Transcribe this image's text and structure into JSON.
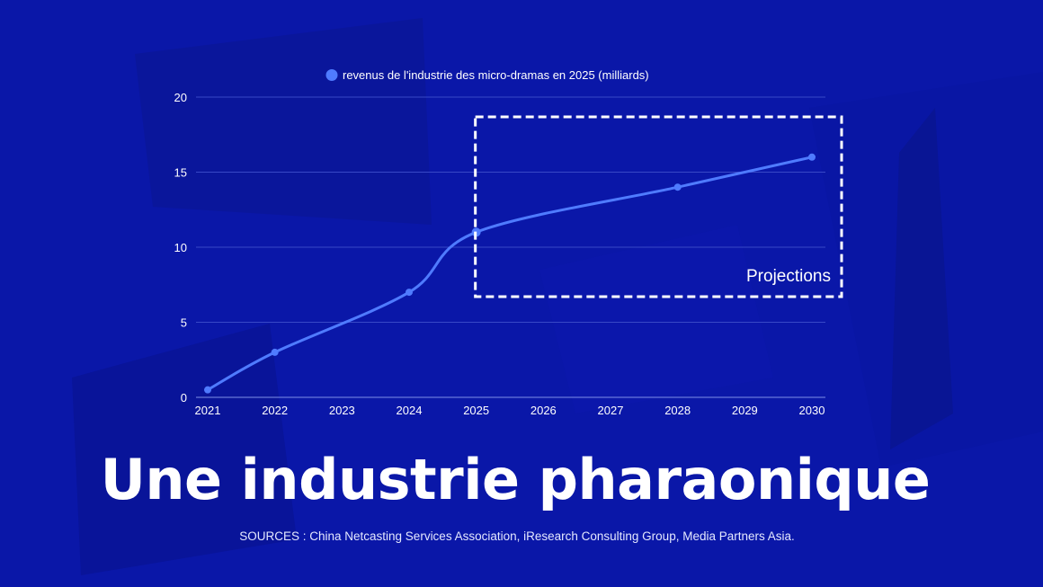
{
  "headline": "Une industrie pharaonique",
  "sources": "SOURCES : China Netcasting Services Association, iResearch Consulting Group, Media Partners Asia.",
  "colors": {
    "background": "#0a17a8",
    "line": "#4f7bff",
    "text": "#ffffff"
  },
  "chart_data": {
    "type": "line",
    "title": "",
    "legend": {
      "position": "top-center"
    },
    "categories": [
      "2021",
      "2022",
      "2023",
      "2024",
      "2025",
      "2026",
      "2027",
      "2028",
      "2029",
      "2030"
    ],
    "series": [
      {
        "name": "revenus de l'industrie des micro-dramas en 2025 (milliards)",
        "points": [
          {
            "x": "2021",
            "y": 0.5
          },
          {
            "x": "2022",
            "y": 3
          },
          {
            "x": "2024",
            "y": 7
          },
          {
            "x": "2025",
            "y": 11
          },
          {
            "x": "2028",
            "y": 14
          },
          {
            "x": "2030",
            "y": 16
          }
        ],
        "smooth": true
      }
    ],
    "ylim": [
      0,
      20
    ],
    "yticks": [
      0,
      5,
      10,
      15,
      20
    ],
    "grid": true,
    "annotations": [
      {
        "label": "Projections",
        "style": "dashed-box",
        "x_range": [
          "2025",
          "2030"
        ]
      }
    ]
  }
}
